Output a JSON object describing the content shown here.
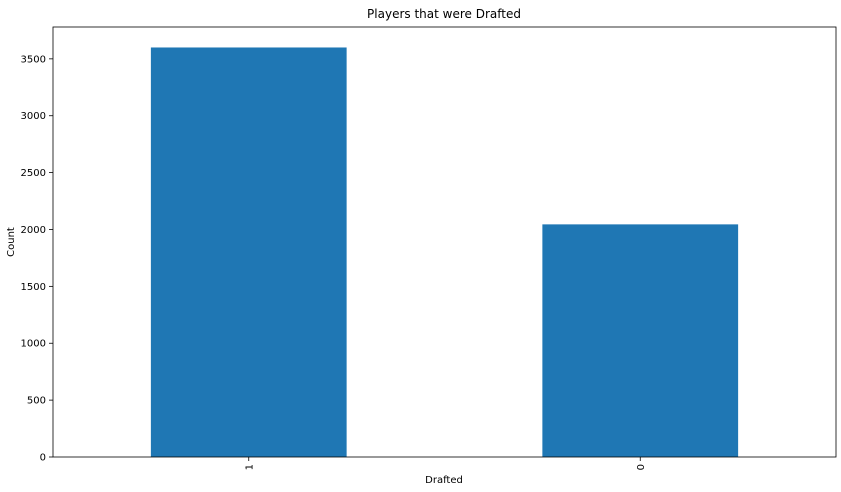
{
  "chart_data": {
    "type": "bar",
    "title": "Players that were Drafted",
    "xlabel": "Drafted",
    "ylabel": "Count",
    "categories": [
      "1",
      "0"
    ],
    "values": [
      3600,
      2045
    ],
    "ylim": [
      0,
      3780
    ],
    "yticks": [
      0,
      500,
      1000,
      1500,
      2000,
      2500,
      3000,
      3500
    ],
    "xtick_rotation": 90,
    "grid": false,
    "legend": "none",
    "bar_color": "#1f77b4"
  }
}
